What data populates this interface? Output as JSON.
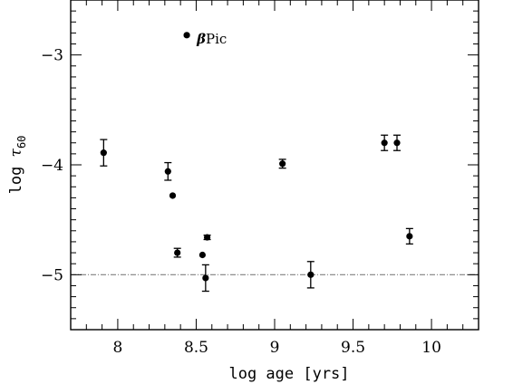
{
  "chart_data": {
    "type": "scatter",
    "title": "",
    "xlabel": "log age [yrs]",
    "ylabel": {
      "prefix": "log ",
      "symbol": "τ",
      "subscript": "60"
    },
    "xlim": [
      7.7,
      10.3
    ],
    "ylim": [
      -5.5,
      -2.5
    ],
    "x_ticks": [
      {
        "value": 8,
        "label": "8"
      },
      {
        "value": 8.5,
        "label": "8.5"
      },
      {
        "value": 9,
        "label": "9"
      },
      {
        "value": 9.5,
        "label": "9.5"
      },
      {
        "value": 10,
        "label": "10"
      }
    ],
    "y_ticks": [
      {
        "value": -3,
        "label": "−3"
      },
      {
        "value": -4,
        "label": "−4"
      },
      {
        "value": -5,
        "label": "−5"
      }
    ],
    "x_minor_step": 0.1,
    "y_minor_step": 0.1,
    "reference_line": {
      "y": -5,
      "style": "dashed"
    },
    "grid": false,
    "points": [
      {
        "x": 7.91,
        "y": -3.89,
        "yerr": 0.12
      },
      {
        "x": 8.32,
        "y": -4.06,
        "yerr": 0.08
      },
      {
        "x": 8.35,
        "y": -4.28,
        "yerr": 0
      },
      {
        "x": 8.38,
        "y": -4.8,
        "yerr": 0.04
      },
      {
        "x": 8.44,
        "y": -2.82,
        "yerr": 0
      },
      {
        "x": 8.54,
        "y": -4.82,
        "yerr": 0
      },
      {
        "x": 8.56,
        "y": -5.03,
        "yerr": 0.12
      },
      {
        "x": 8.57,
        "y": -4.66,
        "yerr": 0.02
      },
      {
        "x": 9.05,
        "y": -3.99,
        "yerr": 0.04
      },
      {
        "x": 9.23,
        "y": -5.0,
        "yerr": 0.12
      },
      {
        "x": 9.7,
        "y": -3.8,
        "yerr": 0.07
      },
      {
        "x": 9.78,
        "y": -3.8,
        "yerr": 0.07
      },
      {
        "x": 9.86,
        "y": -4.65,
        "yerr": 0.07
      }
    ],
    "annotations": [
      {
        "text": "βPic",
        "x": 8.44,
        "y": -2.82
      }
    ],
    "marker_color": "#000000",
    "reference_line_color": "#808080"
  }
}
